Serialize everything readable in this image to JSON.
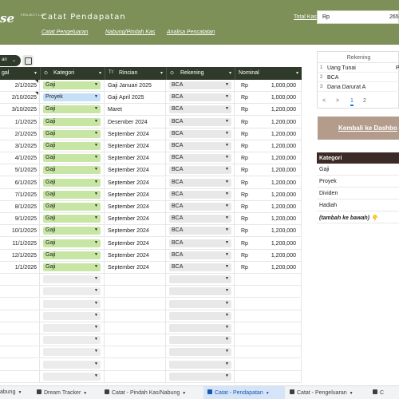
{
  "header": {
    "logo": "se",
    "logo_sub": "PROJECT LAB",
    "title": "Catat Pendapatan",
    "nav": [
      "Catat Pengeluaran",
      "Nabung/Pindah Kas",
      "Analisa Pencatatan"
    ],
    "total_label": "Total Kas",
    "total_currency": "Rp",
    "total_value": "265"
  },
  "toolbar": {
    "filter_label": "an",
    "filter_chevron": "⌄"
  },
  "table": {
    "columns": [
      {
        "label": "gal",
        "icon": ""
      },
      {
        "label": "Kategori",
        "icon": "⊙"
      },
      {
        "label": "Rincian",
        "icon": "Tт"
      },
      {
        "label": "Rekening",
        "icon": "⊙"
      },
      {
        "label": "Nominal",
        "icon": ""
      }
    ],
    "rows": [
      {
        "date": "2/1/2025",
        "kategori": "Gaji",
        "rincian": "Gaji Januari 2025",
        "rekening": "BCA",
        "cur": "Rp",
        "nominal": "1,000,000"
      },
      {
        "date": "2/10/2025",
        "kategori": "Proyek",
        "rincian": "Gaji April 2025",
        "rekening": "BCA",
        "cur": "Rp",
        "nominal": "1,000,000"
      },
      {
        "date": "3/10/2025",
        "kategori": "Gaji",
        "rincian": "Maret",
        "rekening": "BCA",
        "cur": "Rp",
        "nominal": "1,200,000"
      },
      {
        "date": "1/1/2025",
        "kategori": "Gaji",
        "rincian": "Desember 2024",
        "rekening": "BCA",
        "cur": "Rp",
        "nominal": "1,200,000"
      },
      {
        "date": "2/1/2025",
        "kategori": "Gaji",
        "rincian": "September 2024",
        "rekening": "BCA",
        "cur": "Rp",
        "nominal": "1,200,000"
      },
      {
        "date": "3/1/2025",
        "kategori": "Gaji",
        "rincian": "September 2024",
        "rekening": "BCA",
        "cur": "Rp",
        "nominal": "1,200,000"
      },
      {
        "date": "4/1/2025",
        "kategori": "Gaji",
        "rincian": "September 2024",
        "rekening": "BCA",
        "cur": "Rp",
        "nominal": "1,200,000"
      },
      {
        "date": "5/1/2025",
        "kategori": "Gaji",
        "rincian": "September 2024",
        "rekening": "BCA",
        "cur": "Rp",
        "nominal": "1,200,000"
      },
      {
        "date": "6/1/2025",
        "kategori": "Gaji",
        "rincian": "September 2024",
        "rekening": "BCA",
        "cur": "Rp",
        "nominal": "1,200,000"
      },
      {
        "date": "7/1/2025",
        "kategori": "Gaji",
        "rincian": "September 2024",
        "rekening": "BCA",
        "cur": "Rp",
        "nominal": "1,200,000"
      },
      {
        "date": "8/1/2025",
        "kategori": "Gaji",
        "rincian": "September 2024",
        "rekening": "BCA",
        "cur": "Rp",
        "nominal": "1,200,000"
      },
      {
        "date": "9/1/2025",
        "kategori": "Gaji",
        "rincian": "September 2024",
        "rekening": "BCA",
        "cur": "Rp",
        "nominal": "1,200,000"
      },
      {
        "date": "10/1/2025",
        "kategori": "Gaji",
        "rincian": "September 2024",
        "rekening": "BCA",
        "cur": "Rp",
        "nominal": "1,200,000"
      },
      {
        "date": "11/1/2025",
        "kategori": "Gaji",
        "rincian": "September 2024",
        "rekening": "BCA",
        "cur": "Rp",
        "nominal": "1,200,000"
      },
      {
        "date": "12/1/2025",
        "kategori": "Gaji",
        "rincian": "September 2024",
        "rekening": "BCA",
        "cur": "Rp",
        "nominal": "1,200,000"
      },
      {
        "date": "1/1/2026",
        "kategori": "Gaji",
        "rincian": "September 2024",
        "rekening": "BCA",
        "cur": "Rp",
        "nominal": "1,200,000"
      }
    ],
    "empty_rows": 9
  },
  "rekening_panel": {
    "header": "Rekening",
    "items": [
      {
        "num": "1",
        "label": "Uang Tunai",
        "extra": "P"
      },
      {
        "num": "2",
        "label": "BCA",
        "extra": ""
      },
      {
        "num": "3",
        "label": "Dana Darurat A",
        "extra": ""
      }
    ],
    "pager": {
      "prev": "<",
      "pages": [
        "1",
        "2"
      ],
      "next": ">"
    }
  },
  "back_button": "Kembali ke Dashbo",
  "kategori_table": {
    "header": "Kategori",
    "items": [
      "Gaji",
      "Proyek",
      "Dividen",
      "Hadiah"
    ],
    "note": "(tambah ke bawah) 👇"
  },
  "tabs": [
    {
      "label": "abung",
      "locked": false,
      "active": false
    },
    {
      "label": "Dream Tracker",
      "locked": true,
      "active": false
    },
    {
      "label": "Catat - Pindah Kas/Nabung",
      "locked": true,
      "active": false
    },
    {
      "label": "Catat - Pendapatan",
      "locked": true,
      "active": true
    },
    {
      "label": "Catat - Pengeluaran",
      "locked": true,
      "active": false
    },
    {
      "label": "C",
      "locked": true,
      "active": false
    }
  ],
  "colors": {
    "header_bg": "#7d9058",
    "table_head": "#2f3a2b",
    "gaji_chip": "#c7e6a4",
    "proyek_chip": "#c5e0f7",
    "back_btn": "#b49c8c",
    "kategori_head": "#3b2a25"
  }
}
